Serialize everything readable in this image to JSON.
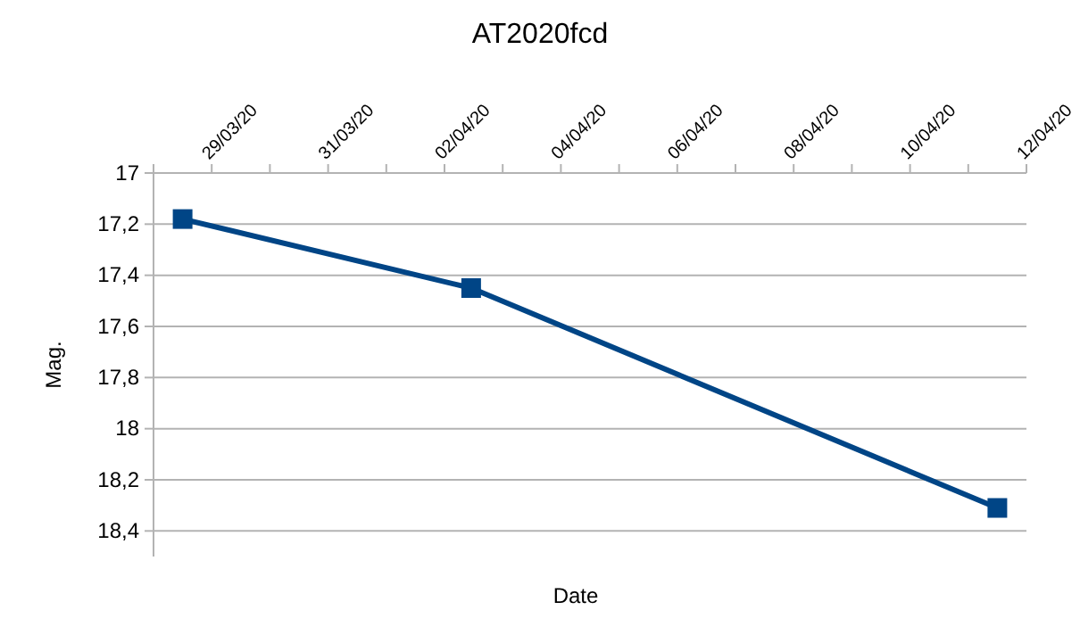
{
  "chart_data": {
    "type": "line",
    "title": "AT2020fcd",
    "xlabel": "Date",
    "ylabel": "Mag.",
    "x": [
      "2020-03-28T12:00",
      "2020-04-02T11:00",
      "2020-04-11T12:00"
    ],
    "series": [
      {
        "color": "#004586",
        "values": [
          17.18,
          17.45,
          18.31
        ]
      }
    ],
    "xlim": [
      "2020-03-28",
      "2020-04-12"
    ],
    "xticks": [
      {
        "value": "2020-03-28",
        "label": null
      },
      {
        "value": "2020-03-29",
        "label": "29/03/20"
      },
      {
        "value": "2020-03-30",
        "label": null
      },
      {
        "value": "2020-03-31",
        "label": "31/03/20"
      },
      {
        "value": "2020-04-01",
        "label": null
      },
      {
        "value": "2020-04-02",
        "label": "02/04/20"
      },
      {
        "value": "2020-04-03",
        "label": null
      },
      {
        "value": "2020-04-04",
        "label": "04/04/20"
      },
      {
        "value": "2020-04-05",
        "label": null
      },
      {
        "value": "2020-04-06",
        "label": "06/04/20"
      },
      {
        "value": "2020-04-07",
        "label": null
      },
      {
        "value": "2020-04-08",
        "label": "08/04/20"
      },
      {
        "value": "2020-04-09",
        "label": null
      },
      {
        "value": "2020-04-10",
        "label": "10/04/20"
      },
      {
        "value": "2020-04-11",
        "label": null
      },
      {
        "value": "2020-04-12",
        "label": "12/04/20"
      }
    ],
    "ylim": [
      18.5,
      17
    ],
    "yticks": [
      {
        "value": 17,
        "label": "17"
      },
      {
        "value": 17.2,
        "label": "17,2"
      },
      {
        "value": 17.4,
        "label": "17,4"
      },
      {
        "value": 17.6,
        "label": "17,6"
      },
      {
        "value": 17.8,
        "label": "17,8"
      },
      {
        "value": 18,
        "label": "18"
      },
      {
        "value": 18.2,
        "label": "18,2"
      },
      {
        "value": 18.4,
        "label": "18,4"
      }
    ],
    "grid": "y",
    "marker": "square",
    "line_style": "solid"
  }
}
